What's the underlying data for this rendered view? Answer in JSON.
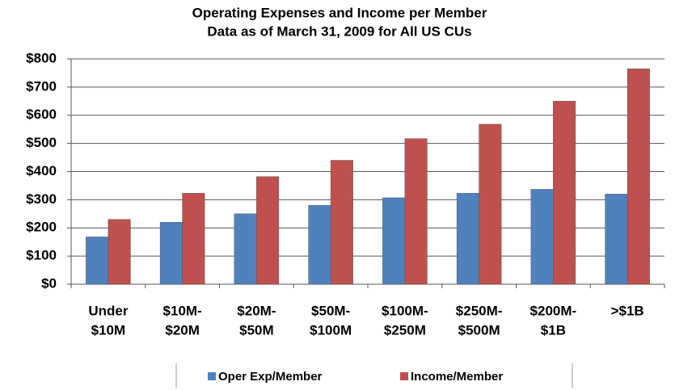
{
  "chart_data": {
    "type": "bar",
    "title": [
      "Operating Expenses and Income per Member",
      "Data as of March 31, 2009 for All US CUs"
    ],
    "categories": [
      [
        "Under",
        "$10M"
      ],
      [
        "$10M-",
        "$20M"
      ],
      [
        "$20M-",
        "$50M"
      ],
      [
        "$50M-",
        "$100M"
      ],
      [
        "$100M-",
        "$250M"
      ],
      [
        "$250M-",
        "$500M"
      ],
      [
        "$200M-",
        "$1B"
      ],
      [
        ">$1B"
      ]
    ],
    "series": [
      {
        "name": "Oper Exp/Member",
        "color": "#4f81bd",
        "values": [
          168,
          220,
          250,
          280,
          307,
          323,
          337,
          320
        ]
      },
      {
        "name": "Income/Member",
        "color": "#c0504d",
        "values": [
          230,
          323,
          382,
          440,
          517,
          568,
          650,
          765
        ]
      }
    ],
    "ylim": [
      0,
      800
    ],
    "yticks": [
      {
        "value": 0,
        "label": "$0"
      },
      {
        "value": 100,
        "label": "$100"
      },
      {
        "value": 200,
        "label": "$200"
      },
      {
        "value": 300,
        "label": "$300"
      },
      {
        "value": 400,
        "label": "$400"
      },
      {
        "value": 500,
        "label": "$500"
      },
      {
        "value": 600,
        "label": "$600"
      },
      {
        "value": 700,
        "label": "$700"
      },
      {
        "value": 800,
        "label": "$800"
      }
    ],
    "grid": true,
    "legend": "bottom"
  }
}
